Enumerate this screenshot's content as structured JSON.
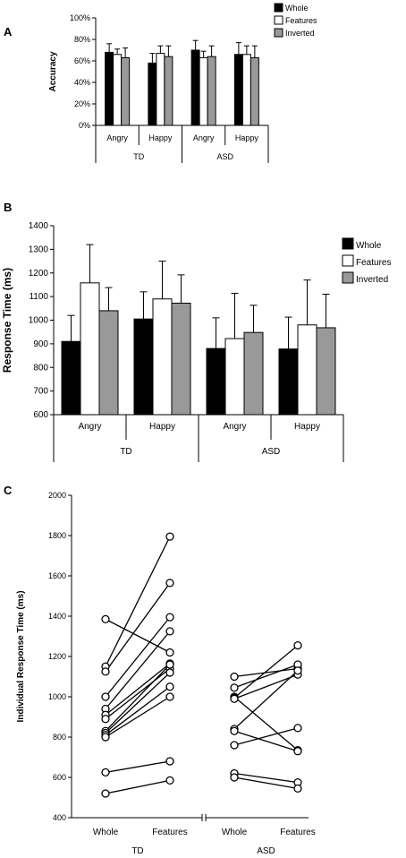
{
  "chart_data": [
    {
      "panel": "A",
      "type": "bar",
      "ylabel": "Accuracy",
      "ylim": [
        0,
        100
      ],
      "yticks": [
        "0%",
        "20%",
        "40%",
        "60%",
        "80%",
        "100%"
      ],
      "groups": [
        "TD",
        "ASD"
      ],
      "categories": [
        "Angry",
        "Happy",
        "Angry",
        "Happy"
      ],
      "legend_position": "top-right",
      "series": [
        {
          "name": "Whole",
          "color": "#000000",
          "values": [
            68,
            58,
            70,
            66
          ],
          "errors": [
            8,
            9,
            9,
            11
          ]
        },
        {
          "name": "Features",
          "color": "#ffffff",
          "values": [
            66,
            67,
            63,
            66
          ],
          "errors": [
            5,
            7,
            6,
            8
          ]
        },
        {
          "name": "Inverted",
          "color": "#999999",
          "values": [
            63,
            64,
            64,
            63
          ],
          "errors": [
            9,
            10,
            10,
            11
          ]
        }
      ]
    },
    {
      "panel": "B",
      "type": "bar",
      "ylabel": "Response Time (ms)",
      "ylim": [
        600,
        1400
      ],
      "yticks": [
        "600",
        "700",
        "800",
        "900",
        "1000",
        "1100",
        "1200",
        "1300",
        "1400"
      ],
      "groups": [
        "TD",
        "ASD"
      ],
      "categories": [
        "Angry",
        "Happy",
        "Angry",
        "Happy"
      ],
      "legend_position": "top-right",
      "series": [
        {
          "name": "Whole",
          "color": "#000000",
          "values": [
            910,
            1005,
            880,
            878
          ],
          "errors": [
            110,
            115,
            130,
            135
          ]
        },
        {
          "name": "Features",
          "color": "#ffffff",
          "values": [
            1158,
            1090,
            922,
            980
          ],
          "errors": [
            162,
            160,
            192,
            190
          ]
        },
        {
          "name": "Inverted",
          "color": "#999999",
          "values": [
            1040,
            1072,
            948,
            968
          ],
          "errors": [
            98,
            120,
            115,
            142
          ]
        }
      ]
    },
    {
      "panel": "C",
      "type": "line",
      "ylabel": "Individual Response Time (ms)",
      "ylim": [
        400,
        2000
      ],
      "yticks": [
        "400",
        "600",
        "800",
        "1000",
        "1200",
        "1400",
        "1600",
        "1800",
        "2000"
      ],
      "x_labels": [
        "Whole",
        "Features",
        "Whole",
        "Features"
      ],
      "groups": [
        "TD",
        "ASD"
      ],
      "pairs": [
        {
          "group": "TD",
          "pairs": [
            [
              1385,
              1220
            ],
            [
              1150,
              1795
            ],
            [
              1125,
              1565
            ],
            [
              1000,
              1395
            ],
            [
              940,
              1325
            ],
            [
              910,
              1165
            ],
            [
              890,
              1140
            ],
            [
              830,
              1160
            ],
            [
              820,
              1120
            ],
            [
              810,
              1050
            ],
            [
              800,
              1000
            ],
            [
              625,
              680
            ],
            [
              520,
              585
            ]
          ]
        },
        {
          "group": "ASD",
          "pairs": [
            [
              1100,
              1140
            ],
            [
              1045,
              1160
            ],
            [
              1000,
              735
            ],
            [
              995,
              1255
            ],
            [
              990,
              1110
            ],
            [
              840,
              1130
            ],
            [
              830,
              730
            ],
            [
              760,
              845
            ],
            [
              620,
              575
            ],
            [
              600,
              545
            ]
          ]
        }
      ]
    }
  ]
}
